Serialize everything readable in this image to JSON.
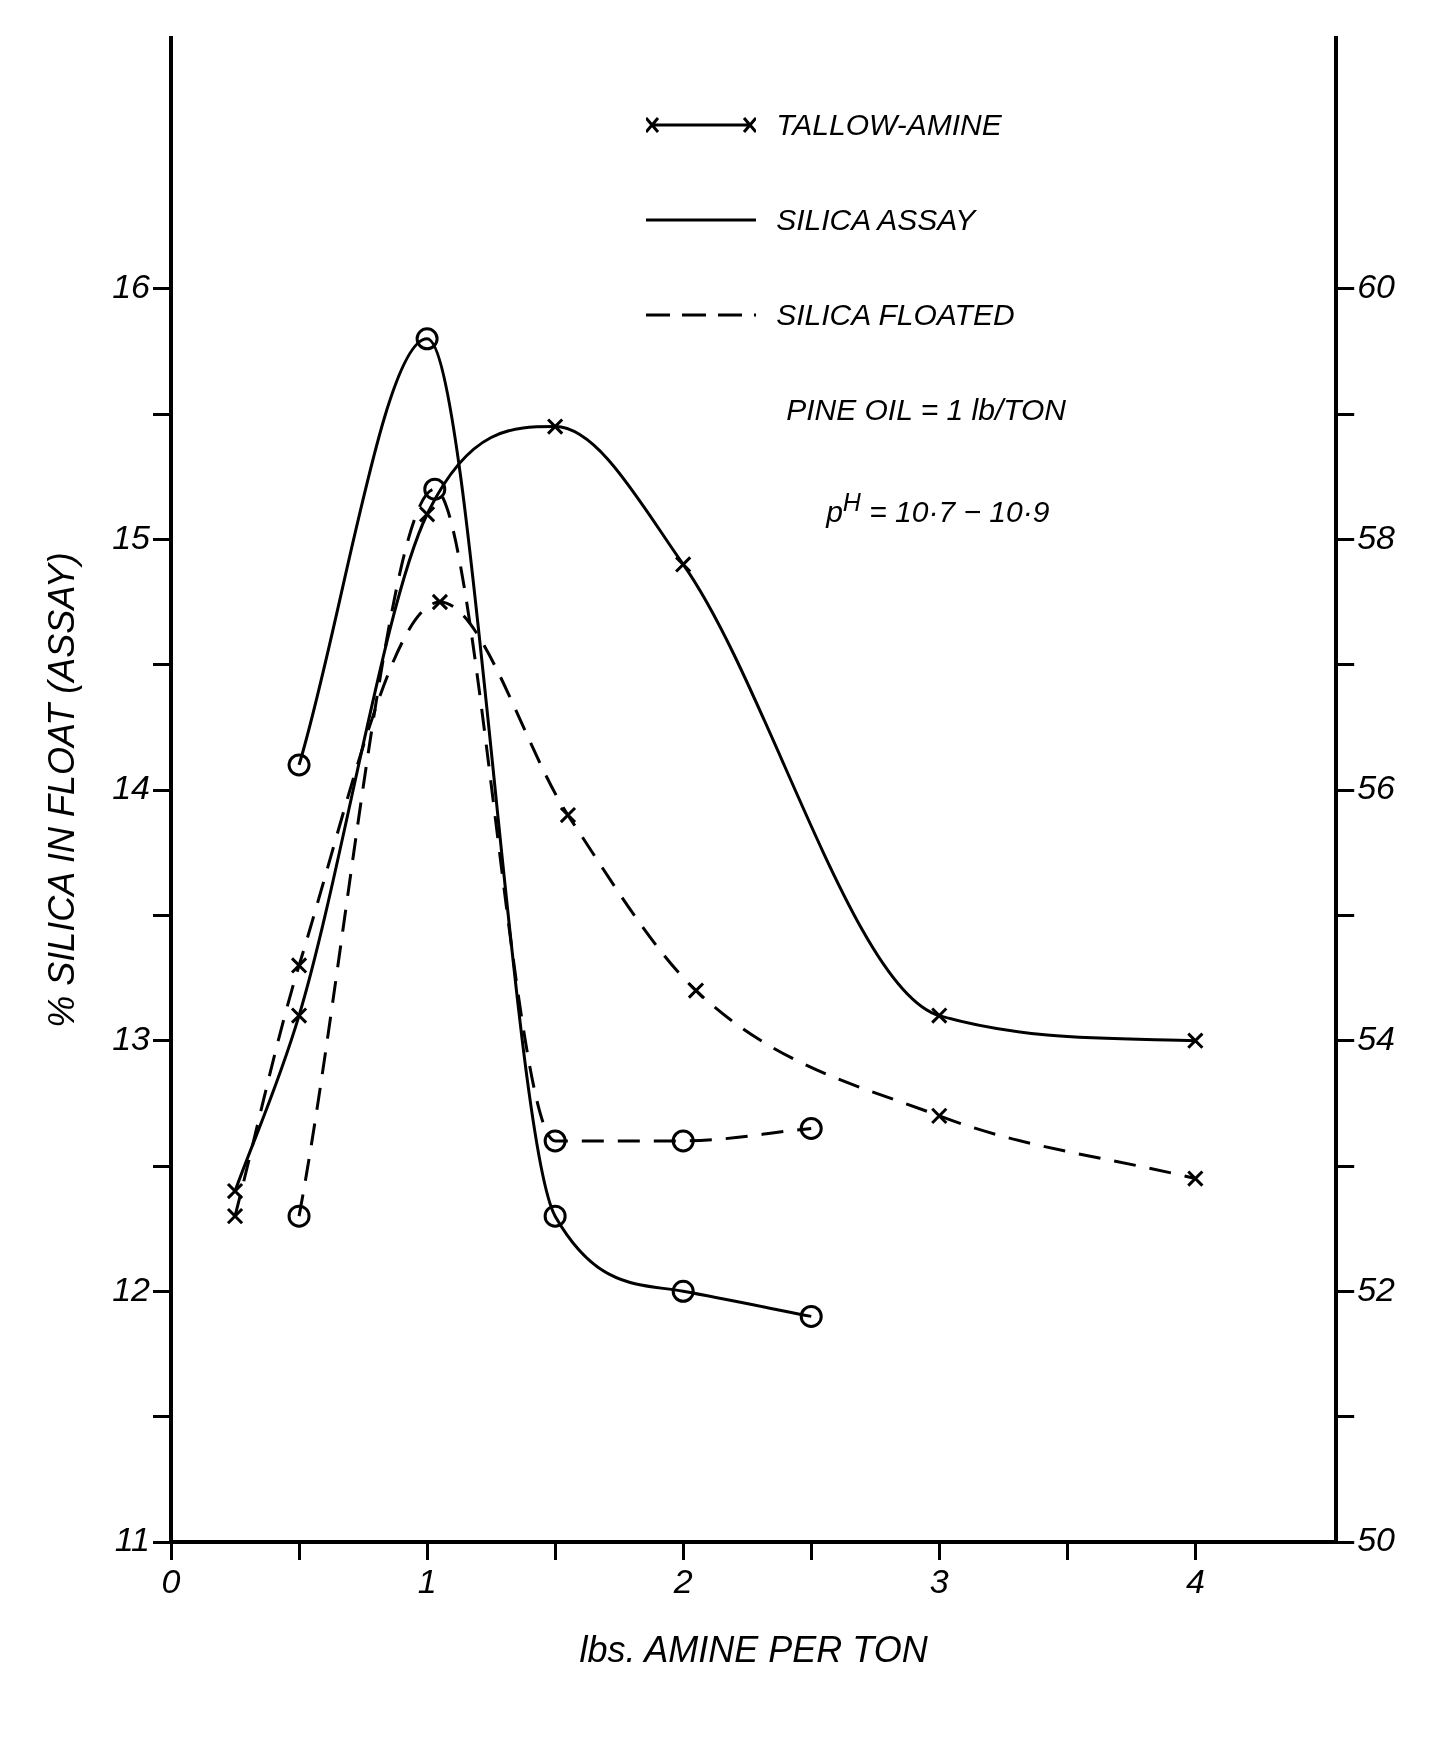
{
  "chart_data": {
    "type": "line",
    "xlabel": "lbs. AMINE PER TON",
    "ylabel": "% SILICA IN FLOAT (ASSAY)",
    "xlim": [
      0,
      4.55
    ],
    "xticks": [
      0,
      {
        "value": 0.5,
        "label": null
      },
      1,
      {
        "value": 1.5,
        "label": null
      },
      2,
      {
        "value": 2.5,
        "label": null
      },
      3,
      {
        "value": 3.5,
        "label": null
      },
      4
    ],
    "ylim": [
      11,
      17
    ],
    "yticks": [
      11,
      {
        "value": 11.5,
        "label": null
      },
      12,
      {
        "value": 12.5,
        "label": null
      },
      13,
      {
        "value": 13.5,
        "label": null
      },
      14,
      {
        "value": 14.5,
        "label": null
      },
      15,
      {
        "value": 15.5,
        "label": null
      },
      16
    ],
    "y2lim": [
      50,
      62
    ],
    "y2ticks": [
      50,
      {
        "value": 51,
        "label": null
      },
      52,
      {
        "value": 53,
        "label": null
      },
      54,
      {
        "value": 55,
        "label": null
      },
      56,
      {
        "value": 57,
        "label": null
      },
      58,
      {
        "value": 59,
        "label": null
      },
      60
    ],
    "grid": false,
    "legend": false,
    "series": [
      {
        "color": "#000000",
        "marker": "circle",
        "line_style": "solid",
        "x": [
          0.5,
          1,
          1.5,
          2,
          2.5
        ],
        "values": [
          14.1,
          15.8,
          12.3,
          12.0,
          11.9
        ]
      },
      {
        "color": "#000000",
        "marker": "circle",
        "line_style": "dashed",
        "axis": "y2",
        "x": [
          0.5,
          1.03,
          1.5,
          2,
          2.5
        ],
        "values": [
          52.6,
          58.4,
          53.2,
          53.2,
          53.3
        ]
      },
      {
        "color": "#000000",
        "marker": "cross",
        "line_style": "solid",
        "x": [
          0.25,
          0.5,
          1,
          1.5,
          2,
          3,
          4
        ],
        "values": [
          12.4,
          13.1,
          15.1,
          15.45,
          14.9,
          13.1,
          13.0
        ]
      },
      {
        "color": "#000000",
        "marker": "cross",
        "line_style": "dashed",
        "axis": "y2",
        "x": [
          0.25,
          0.5,
          1.05,
          1.55,
          2.05,
          3,
          4
        ],
        "values": [
          52.6,
          54.6,
          57.5,
          55.8,
          54.4,
          53.4,
          52.9
        ]
      }
    ],
    "annotations": [
      "TALLOW-AMINE",
      "SILICA ASSAY",
      "SILICA FLOATED",
      "PINE OIL = 1 lb/TON",
      "p$^{H}$ = 10·7 − 10·9"
    ]
  }
}
